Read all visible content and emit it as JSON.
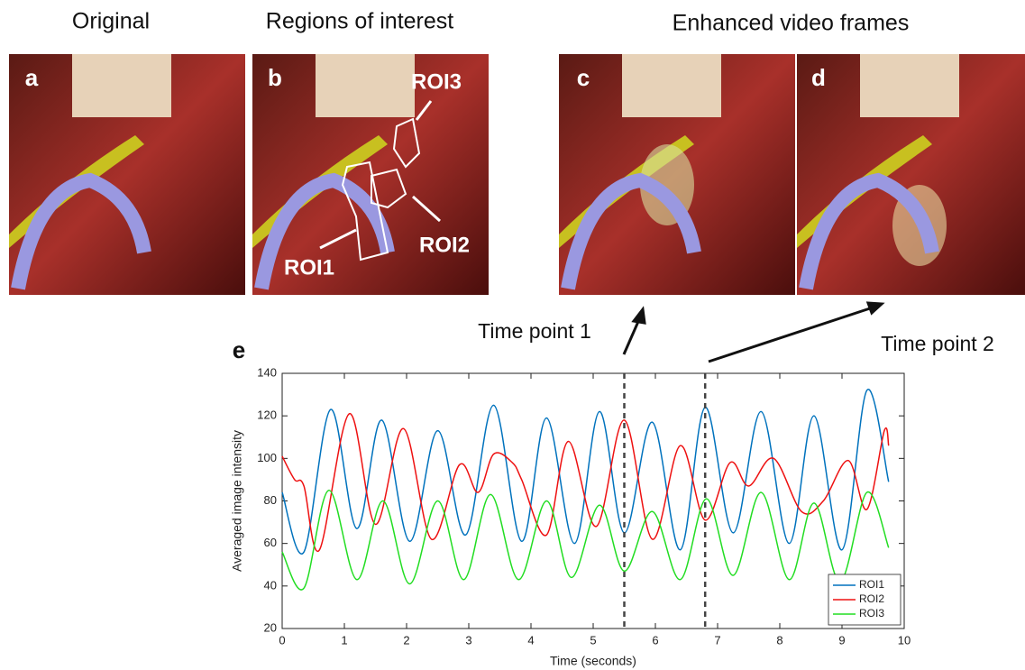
{
  "headings": [
    "Original",
    "Regions of interest",
    "Enhanced video frames"
  ],
  "panels": [
    "a",
    "b",
    "c",
    "d"
  ],
  "roi_labels": [
    "ROI1",
    "ROI2",
    "ROI3"
  ],
  "time_points": [
    "Time point 1",
    "Time point 2"
  ],
  "chart_data": {
    "type": "line",
    "panel_label": "e",
    "xlabel": "Time (seconds)",
    "ylabel": "Averaged image intensity",
    "xlim": [
      0,
      10
    ],
    "ylim": [
      20,
      140
    ],
    "xticks": [
      0,
      1,
      2,
      3,
      4,
      5,
      6,
      7,
      8,
      9,
      10
    ],
    "yticks": [
      20,
      40,
      60,
      80,
      100,
      120,
      140
    ],
    "vlines": [
      5.5,
      6.8
    ],
    "legend": "lower right",
    "series": [
      {
        "name": "ROI1",
        "color": "#0072bd",
        "x": [
          0,
          0.35,
          0.78,
          1.2,
          1.6,
          2.05,
          2.5,
          2.95,
          3.4,
          3.85,
          4.25,
          4.7,
          5.1,
          5.5,
          5.95,
          6.4,
          6.8,
          7.25,
          7.7,
          8.15,
          8.55,
          9.0,
          9.4,
          9.75
        ],
        "values": [
          84,
          56,
          123,
          67,
          118,
          61,
          113,
          64,
          125,
          61,
          119,
          60,
          122,
          65,
          117,
          57,
          124,
          65,
          122,
          60,
          120,
          57,
          132,
          89
        ]
      },
      {
        "name": "ROI2",
        "color": "#ee1111",
        "x": [
          0,
          0.2,
          0.35,
          0.6,
          1.08,
          1.5,
          1.95,
          2.4,
          2.85,
          3.15,
          3.4,
          3.7,
          3.85,
          4.25,
          4.6,
          5.05,
          5.5,
          5.95,
          6.4,
          6.8,
          7.2,
          7.5,
          7.9,
          8.35,
          8.7,
          9.1,
          9.4,
          9.68,
          9.75
        ],
        "values": [
          101,
          90,
          87,
          57,
          121,
          69,
          114,
          62,
          97,
          84,
          102,
          98,
          90,
          64,
          108,
          68,
          118,
          62,
          106,
          71,
          98,
          87,
          100,
          75,
          80,
          99,
          76,
          113,
          106
        ]
      },
      {
        "name": "ROI3",
        "color": "#22dd22",
        "x": [
          0,
          0.35,
          0.75,
          1.2,
          1.62,
          2.05,
          2.5,
          2.92,
          3.35,
          3.8,
          4.25,
          4.65,
          5.1,
          5.5,
          5.95,
          6.4,
          6.82,
          7.25,
          7.7,
          8.15,
          8.55,
          8.97,
          9.4,
          9.75
        ],
        "values": [
          56,
          39,
          85,
          43,
          80,
          41,
          80,
          43,
          83,
          43,
          80,
          44,
          78,
          47,
          75,
          43,
          81,
          45,
          84,
          43,
          79,
          42,
          84,
          58
        ]
      }
    ]
  }
}
